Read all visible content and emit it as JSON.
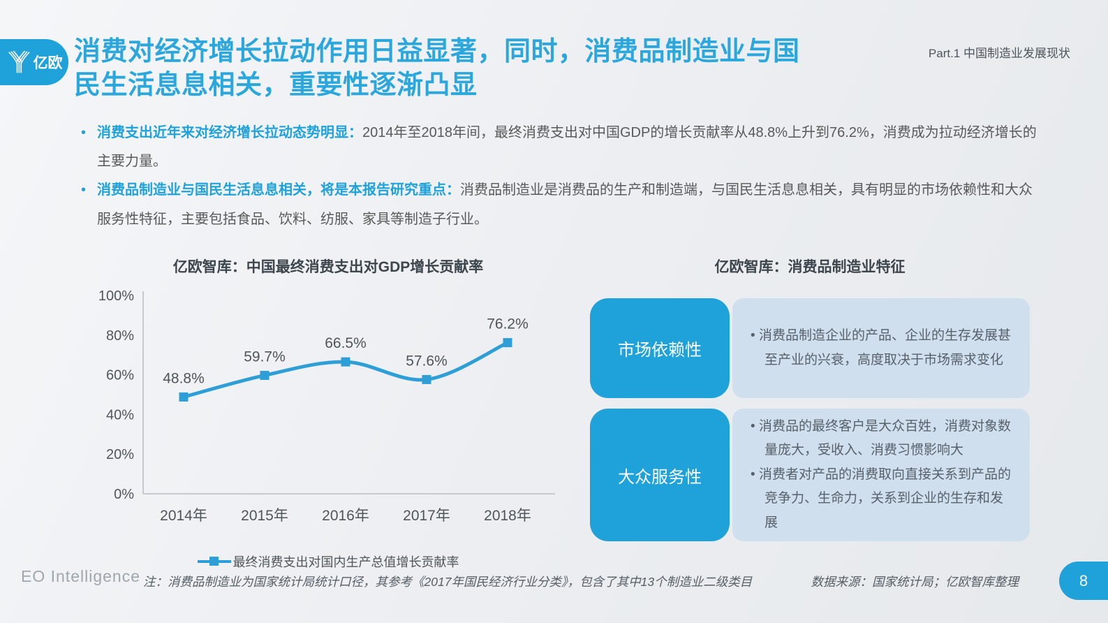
{
  "header": {
    "logo_text": "亿欧",
    "title_lines": [
      "消费对经济增长拉动作用日益显著，同时，消费品制造业与国",
      "民生活息息相关，重要性逐渐凸显"
    ],
    "part_label": "Part.1 中国制造业发展现状"
  },
  "bullets": [
    {
      "lead": "消费支出近年来对经济增长拉动态势明显：",
      "body": "2014年至2018年间，最终消费支出对中国GDP的增长贡献率从48.8%上升到76.2%，消费成为拉动经济增长的主要力量。"
    },
    {
      "lead": "消费品制造业与国民生活息息相关，将是本报告研究重点：",
      "body": "消费品制造业是消费品的生产和制造端，与国民生活息息相关，具有明显的市场依赖性和大众服务性特征，主要包括食品、饮料、纺服、家具等制造子行业。"
    }
  ],
  "chart_data": {
    "type": "line",
    "title": "亿欧智库：中国最终消费支出对GDP增长贡献率",
    "categories": [
      "2014年",
      "2015年",
      "2016年",
      "2017年",
      "2018年"
    ],
    "series": [
      {
        "name": "最终消费支出对国内生产总值增长贡献率",
        "values": [
          48.8,
          59.7,
          66.5,
          57.6,
          76.2
        ]
      }
    ],
    "unit": "%",
    "ylim": [
      0,
      100
    ],
    "yticks": [
      0,
      20,
      40,
      60,
      80,
      100
    ],
    "grid": false,
    "legend_position": "bottom",
    "data_labels": true,
    "marker": "square"
  },
  "features": {
    "title": "亿欧智库：消费品制造业特征",
    "items": [
      {
        "label": "市场依赖性",
        "points": [
          "消费品制造企业的产品、企业的生存发展甚至产业的兴衰，高度取决于市场需求变化"
        ]
      },
      {
        "label": "大众服务性",
        "points": [
          "消费品的最终客户是大众百姓，消费对象数量庞大，受收入、消费习惯影响大",
          "消费者对产品的消费取向直接关系到产品的竞争力、生命力，关系到企业的生存和发展"
        ]
      }
    ]
  },
  "footer": {
    "brand": "EO Intelligence",
    "note": "注：消费品制造业为国家统计局统计口径，其参考《2017年国民经济行业分类》，包含了其中13个制造业二级类目",
    "source": "数据来源：国家统计局；亿欧智库整理",
    "page_number": "8"
  },
  "colors": {
    "brand_blue": "#1FA2DA",
    "title_blue": "#2BA7DC",
    "line_blue": "#2D9FD6",
    "panel_blue": "#CFDFEE",
    "axis_gray": "#C6CACD",
    "chart_text": "#4F565B",
    "text_gray": "#595959"
  }
}
